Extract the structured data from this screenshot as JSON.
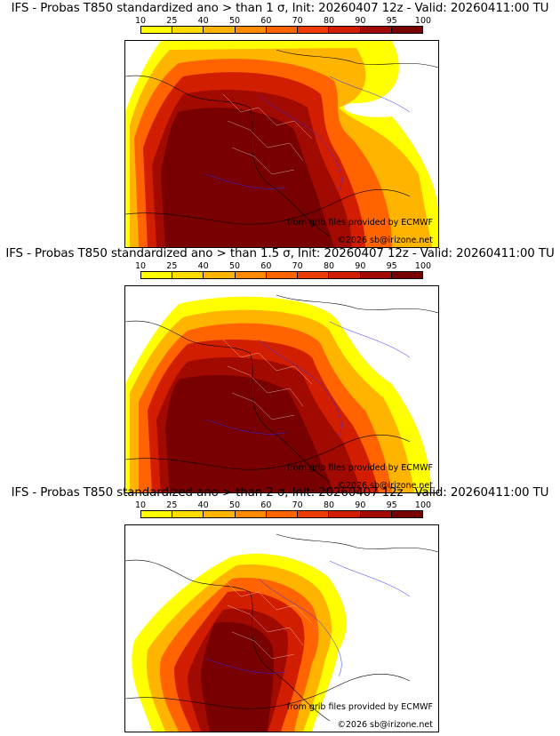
{
  "colorbar": {
    "ticks": [
      "10",
      "25",
      "40",
      "50",
      "60",
      "70",
      "80",
      "90",
      "95",
      "100"
    ],
    "colors": [
      "#ffff00",
      "#ffdc00",
      "#ffb400",
      "#ff8c00",
      "#ff6400",
      "#f03c00",
      "#d21e00",
      "#a00a00",
      "#780000"
    ]
  },
  "panels": [
    {
      "title": "IFS - Probas T850  standardized ano > than 1 σ, Init: 20260407 12z - Valid: 20260411:00 TU",
      "credit_source": "from grib files provided by ECMWF",
      "credit_copyright": "©2026 sb@irizone.net"
    },
    {
      "title": "IFS - Probas T850  standardized ano > than 1.5 σ, Init: 20260407 12z - Valid: 20260411:00 TU",
      "credit_source": "from grib files provided by ECMWF",
      "credit_copyright": "©2026 sb@irizone.net"
    },
    {
      "title": "IFS - Probas T850  standardized ano > than 2 σ, Init: 20260407 12z - Valid: 20260411:00 TU",
      "credit_source": "from grib files provided by ECMWF",
      "credit_copyright": "©2026 sb@irizone.net"
    }
  ]
}
